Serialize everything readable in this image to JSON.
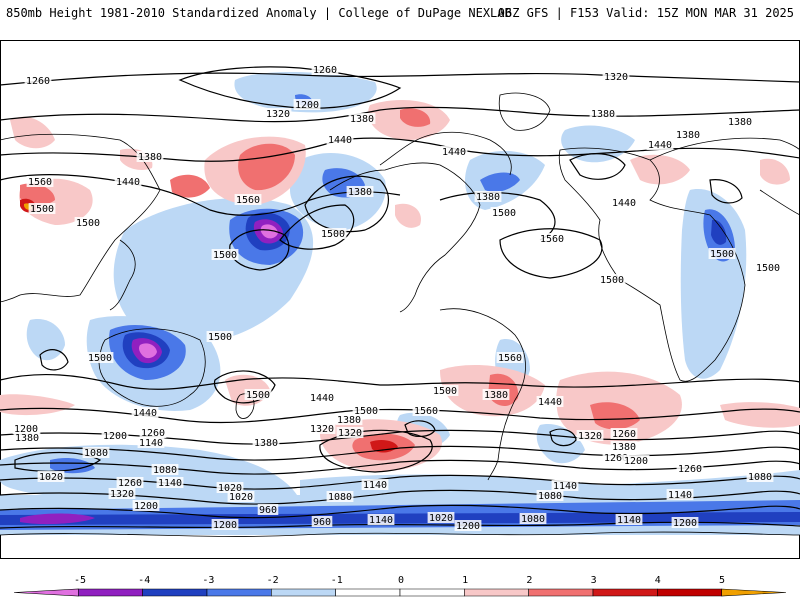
{
  "header": {
    "left": "850mb Height 1981-2010 Standardized Anomaly | College of DuPage NEXLAB",
    "right": "06Z GFS | F153 Valid: 15Z MON MAR 31 2025"
  },
  "colors": {
    "neg5": "#e070e0",
    "neg4": "#9020c0",
    "neg3": "#2040c0",
    "neg2": "#4a78e8",
    "neg1": "#bcd8f5",
    "pos1": "#f8c8c8",
    "pos2": "#f07070",
    "pos3": "#d01818",
    "pos4": "#c00000",
    "pos5": "#f0a000",
    "contour": "#000000",
    "coast": "#000000"
  },
  "legend": {
    "ticks": [
      "-5",
      "-4",
      "-3",
      "-2",
      "-1",
      "0",
      "1",
      "2",
      "3",
      "4",
      "5"
    ],
    "colorbar": [
      "#e070e0",
      "#9020c0",
      "#2040c0",
      "#4a78e8",
      "#bcd8f5",
      "#ffffff",
      "#ffffff",
      "#f8c8c8",
      "#f07070",
      "#d01818",
      "#c00000",
      "#f0a000"
    ]
  },
  "contour_labels": [
    {
      "text": "1260"
    },
    {
      "text": "1260"
    },
    {
      "text": "1200"
    },
    {
      "text": "1320"
    },
    {
      "text": "1380"
    },
    {
      "text": "1320"
    },
    {
      "text": "1380"
    },
    {
      "text": "1440"
    },
    {
      "text": "1380"
    },
    {
      "text": "1380"
    },
    {
      "text": "1440"
    },
    {
      "text": "1560"
    },
    {
      "text": "1560"
    },
    {
      "text": "1500"
    },
    {
      "text": "1500"
    },
    {
      "text": "1380"
    },
    {
      "text": "1440"
    },
    {
      "text": "1380"
    },
    {
      "text": "1500"
    },
    {
      "text": "1560"
    },
    {
      "text": "1380"
    },
    {
      "text": "1500"
    },
    {
      "text": "1440"
    },
    {
      "text": "1440"
    },
    {
      "text": "1500"
    },
    {
      "text": "1500"
    },
    {
      "text": "1500"
    },
    {
      "text": "1500"
    },
    {
      "text": "1500"
    },
    {
      "text": "1500"
    },
    {
      "text": "1560"
    },
    {
      "text": "1440"
    },
    {
      "text": "1380"
    },
    {
      "text": "1500"
    },
    {
      "text": "1440"
    },
    {
      "text": "1500"
    },
    {
      "text": "1560"
    },
    {
      "text": "1500"
    },
    {
      "text": "1380"
    },
    {
      "text": "1320"
    },
    {
      "text": "1440"
    },
    {
      "text": "1380"
    },
    {
      "text": "1320"
    },
    {
      "text": "1260"
    },
    {
      "text": "1380"
    },
    {
      "text": "1200"
    },
    {
      "text": "1200"
    },
    {
      "text": "1260"
    },
    {
      "text": "1380"
    },
    {
      "text": "1320"
    },
    {
      "text": "1260"
    },
    {
      "text": "1200"
    },
    {
      "text": "1080"
    },
    {
      "text": "1140"
    },
    {
      "text": "1080"
    },
    {
      "text": "1020"
    },
    {
      "text": "1140"
    },
    {
      "text": "1260"
    },
    {
      "text": "1320"
    },
    {
      "text": "1020"
    },
    {
      "text": "1020"
    },
    {
      "text": "1080"
    },
    {
      "text": "960"
    },
    {
      "text": "1200"
    },
    {
      "text": "1140"
    },
    {
      "text": "1140"
    },
    {
      "text": "1080"
    },
    {
      "text": "960"
    },
    {
      "text": "1020"
    },
    {
      "text": "1140"
    },
    {
      "text": "1080"
    },
    {
      "text": "1140"
    },
    {
      "text": "1200"
    },
    {
      "text": "1200"
    },
    {
      "text": "1200"
    },
    {
      "text": "1140"
    },
    {
      "text": "1080"
    },
    {
      "text": "1260"
    }
  ]
}
